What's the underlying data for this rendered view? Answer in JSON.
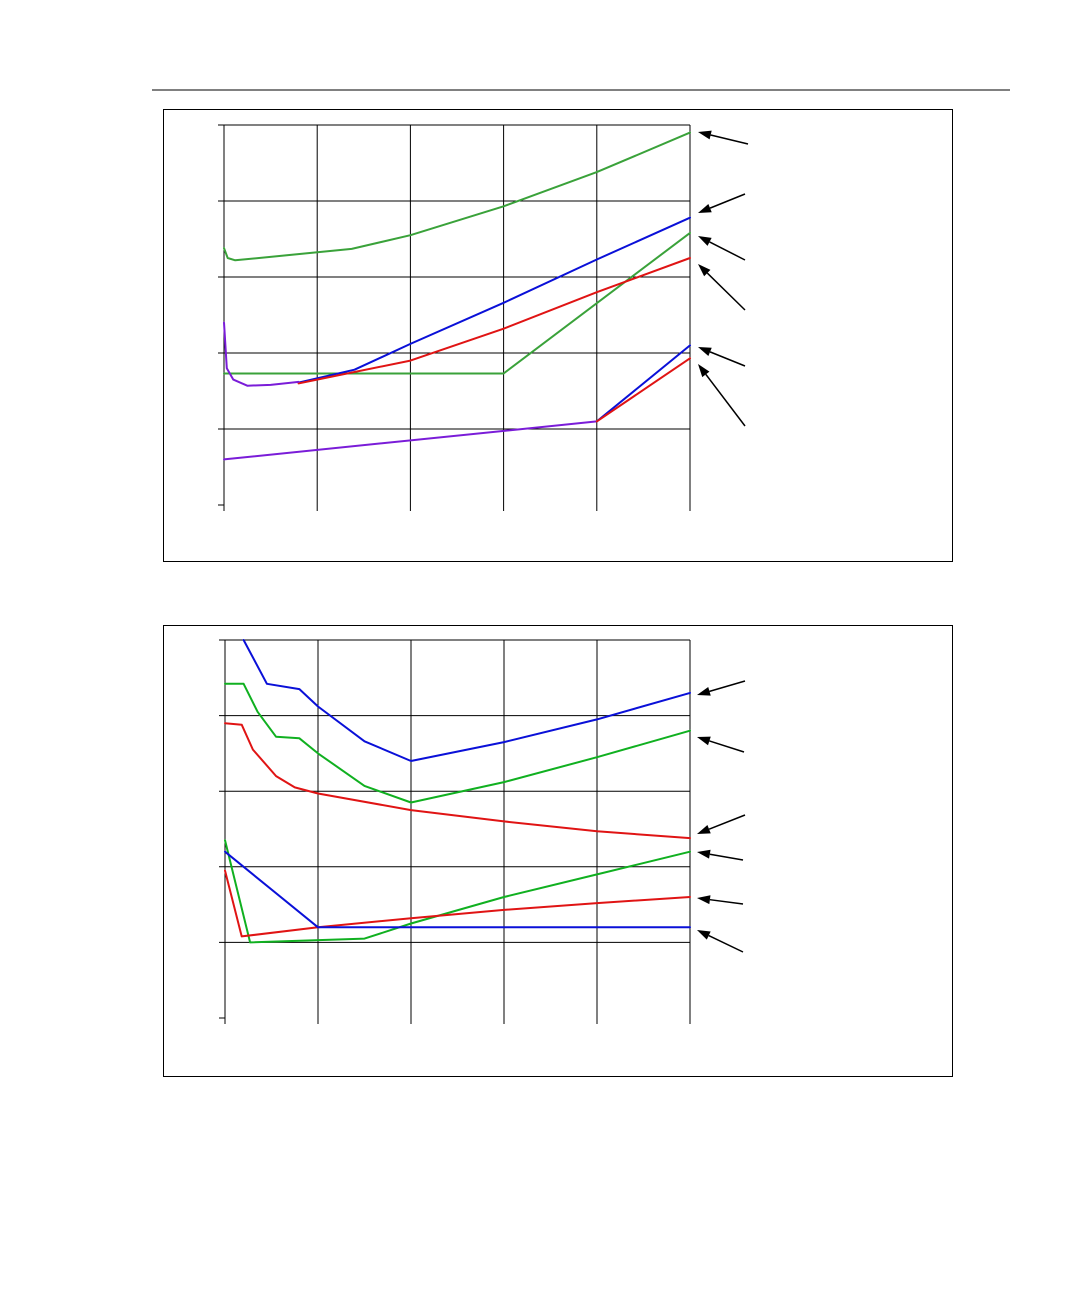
{
  "colors": {
    "green": "#3aa23a",
    "blue": "#0a10d8",
    "red": "#e01414",
    "purple": "#7a1cd8",
    "bright_green": "#10b020"
  },
  "chart_data": [
    {
      "type": "line",
      "grid": true,
      "x_divisions": 5,
      "y_divisions": 5,
      "xlim": [
        0,
        5
      ],
      "ylim": [
        0,
        5
      ],
      "series": [
        {
          "color": "green",
          "points": [
            [
              0.0,
              3.38
            ],
            [
              0.04,
              3.25
            ],
            [
              0.12,
              3.22
            ],
            [
              1.37,
              3.37
            ],
            [
              2.0,
              3.55
            ],
            [
              3.0,
              3.93
            ],
            [
              4.0,
              4.38
            ],
            [
              5.0,
              4.9
            ]
          ]
        },
        {
          "color": "green",
          "points": [
            [
              0.0,
              1.73
            ],
            [
              3.0,
              1.73
            ],
            [
              5.0,
              3.58
            ]
          ]
        },
        {
          "color": "blue",
          "points": [
            [
              0.8,
              1.61
            ],
            [
              1.4,
              1.78
            ],
            [
              2.0,
              2.12
            ],
            [
              3.0,
              2.66
            ],
            [
              4.0,
              3.23
            ],
            [
              5.0,
              3.78
            ]
          ]
        },
        {
          "color": "red",
          "points": [
            [
              0.8,
              1.6
            ],
            [
              2.0,
              1.9
            ],
            [
              3.0,
              2.32
            ],
            [
              4.0,
              2.8
            ],
            [
              5.0,
              3.25
            ]
          ]
        },
        {
          "color": "purple",
          "points": [
            [
              0.0,
              2.4
            ],
            [
              0.03,
              1.8
            ],
            [
              0.1,
              1.65
            ],
            [
              0.25,
              1.57
            ],
            [
              0.5,
              1.58
            ],
            [
              0.8,
              1.62
            ]
          ]
        },
        {
          "color": "purple",
          "points": [
            [
              0.0,
              0.6
            ],
            [
              4.0,
              1.1
            ]
          ]
        },
        {
          "color": "blue",
          "points": [
            [
              4.0,
              1.1
            ],
            [
              5.0,
              2.1
            ]
          ]
        },
        {
          "color": "red",
          "points": [
            [
              4.0,
              1.1
            ],
            [
              5.0,
              1.93
            ]
          ]
        }
      ],
      "arrows": 6
    },
    {
      "type": "line",
      "grid": true,
      "x_divisions": 5,
      "y_divisions": 5,
      "xlim": [
        0,
        5
      ],
      "ylim": [
        0,
        5
      ],
      "series": [
        {
          "color": "blue",
          "points": [
            [
              0.2,
              5.0
            ],
            [
              0.45,
              4.42
            ],
            [
              0.8,
              4.35
            ],
            [
              1.0,
              4.12
            ],
            [
              1.5,
              3.66
            ],
            [
              2.0,
              3.4
            ],
            [
              3.0,
              3.65
            ],
            [
              4.0,
              3.95
            ],
            [
              5.0,
              4.3
            ]
          ]
        },
        {
          "color": "bright_green",
          "points": [
            [
              0.0,
              4.42
            ],
            [
              0.2,
              4.42
            ],
            [
              0.35,
              4.05
            ],
            [
              0.55,
              3.72
            ],
            [
              0.8,
              3.7
            ],
            [
              1.0,
              3.5
            ],
            [
              1.5,
              3.07
            ],
            [
              2.0,
              2.85
            ],
            [
              3.0,
              3.12
            ],
            [
              4.0,
              3.45
            ],
            [
              5.0,
              3.8
            ]
          ]
        },
        {
          "color": "red",
          "points": [
            [
              0.0,
              3.9
            ],
            [
              0.18,
              3.88
            ],
            [
              0.3,
              3.55
            ],
            [
              0.55,
              3.2
            ],
            [
              0.75,
              3.05
            ],
            [
              1.0,
              2.97
            ],
            [
              2.0,
              2.75
            ],
            [
              3.0,
              2.6
            ],
            [
              4.0,
              2.47
            ],
            [
              5.0,
              2.38
            ]
          ]
        },
        {
          "color": "bright_green",
          "points": [
            [
              0.0,
              2.35
            ],
            [
              0.27,
              1.0
            ],
            [
              1.5,
              1.05
            ],
            [
              2.0,
              1.25
            ],
            [
              3.0,
              1.6
            ],
            [
              4.0,
              1.9
            ],
            [
              5.0,
              2.2
            ]
          ]
        },
        {
          "color": "red",
          "points": [
            [
              0.0,
              1.95
            ],
            [
              0.18,
              1.08
            ],
            [
              1.0,
              1.2
            ],
            [
              2.0,
              1.32
            ],
            [
              3.0,
              1.43
            ],
            [
              4.0,
              1.52
            ],
            [
              5.0,
              1.6
            ]
          ]
        },
        {
          "color": "blue",
          "points": [
            [
              0.0,
              2.2
            ],
            [
              1.0,
              1.2
            ],
            [
              2.0,
              1.2
            ],
            [
              3.0,
              1.2
            ],
            [
              4.0,
              1.2
            ],
            [
              5.0,
              1.2
            ]
          ]
        }
      ],
      "arrows": 6
    }
  ]
}
